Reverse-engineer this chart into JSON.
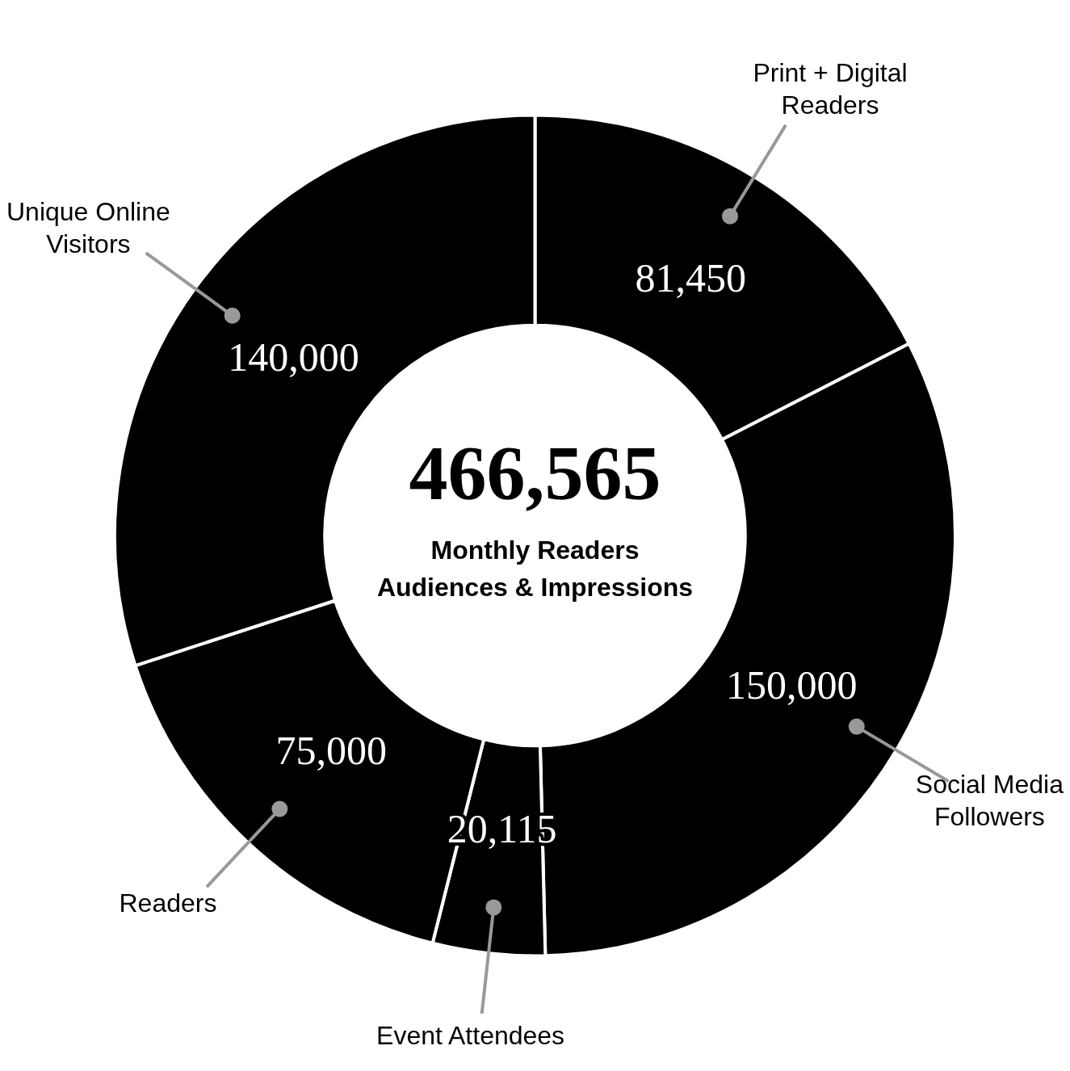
{
  "chart_data": {
    "type": "donut",
    "categories": [
      "Print + Digital Readers",
      "Social Media Followers",
      "Event Attendees",
      "Readers",
      "Unique Online Visitors"
    ],
    "values": [
      81450,
      150000,
      20115,
      75000,
      140000
    ],
    "colors": [
      "#000000",
      "#000000",
      "#000000",
      "#000000",
      "#000000"
    ],
    "value_labels": [
      "81,450",
      "150,000",
      "20,115",
      "75,000",
      "140,000"
    ],
    "legend": false,
    "annotations": [
      "466,565",
      "Monthly Readers",
      "Audiences & Impressions"
    ]
  }
}
